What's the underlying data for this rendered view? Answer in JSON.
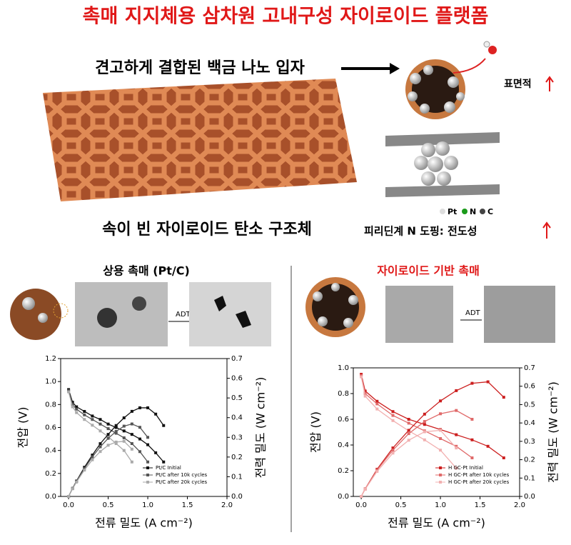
{
  "header": {
    "title": "촉매 지지체용 삼차원 고내구성 자이로이드 플랫폼"
  },
  "illustration": {
    "particles_label": "견고하게 결합된 백금 나노 입자",
    "surface_label": "표면적",
    "structure_label": "속이 빈 자이로이드 탄소 구조체",
    "doping_label": "피리딘계 N 도핑: 전도성",
    "atoms": [
      "Pt",
      "N",
      "C"
    ]
  },
  "panels": [
    {
      "adt": "ADT"
    },
    {
      "adt": "ADT"
    }
  ],
  "chart_data": [
    {
      "type": "line",
      "title": "상용 촉매 (Pt/C)",
      "x_label": "전류 밀도 (A cm⁻²)",
      "y_label": "전압 (V)",
      "y2_label": "전력 밀도 (W cm⁻²)",
      "xlim": [
        -0.1,
        2.0
      ],
      "xticks": [
        {
          "value": 0,
          "label": "0.0"
        },
        {
          "value": 0.5,
          "label": "0.5"
        },
        {
          "value": 1,
          "label": "1.0"
        },
        {
          "value": 1.5,
          "label": "1.5"
        },
        {
          "value": 2,
          "label": "2.0"
        }
      ],
      "ylim": [
        0,
        1.2
      ],
      "yticks": [
        {
          "value": 0,
          "label": "0.0"
        },
        0.2,
        0.4,
        0.6,
        0.8,
        {
          "value": 1,
          "label": "1.0"
        },
        1.2
      ],
      "y2lim": [
        0,
        0.7
      ],
      "y2ticks": [
        {
          "value": 0,
          "label": "0.0"
        },
        0.1,
        0.2,
        0.3,
        0.4,
        0.5,
        0.6,
        0.7
      ],
      "legend": "lower right",
      "series": [
        {
          "name": "Pt/C Initial",
          "color": "#111111",
          "x": [
            0,
            0.05,
            0.1,
            0.2,
            0.3,
            0.4,
            0.5,
            0.6,
            0.7,
            0.8,
            0.9,
            1.0,
            1.1,
            1.2
          ],
          "values": [
            0.93,
            0.82,
            0.78,
            0.74,
            0.7,
            0.67,
            0.63,
            0.6,
            0.57,
            0.54,
            0.5,
            0.45,
            0.38,
            0.3
          ]
        },
        {
          "name": "Pt/C after 10k cycles",
          "color": "#555555",
          "x": [
            0,
            0.05,
            0.1,
            0.2,
            0.3,
            0.4,
            0.5,
            0.6,
            0.7,
            0.8,
            0.9,
            1.0
          ],
          "values": [
            0.92,
            0.8,
            0.76,
            0.71,
            0.67,
            0.63,
            0.59,
            0.55,
            0.51,
            0.46,
            0.39,
            0.3
          ]
        },
        {
          "name": "Pt/C after 20k cycles",
          "color": "#aaaaaa",
          "x": [
            0,
            0.05,
            0.1,
            0.2,
            0.3,
            0.4,
            0.5,
            0.6,
            0.7,
            0.8
          ],
          "values": [
            0.91,
            0.78,
            0.73,
            0.67,
            0.62,
            0.57,
            0.52,
            0.46,
            0.4,
            0.3
          ]
        },
        {
          "color": "#111111",
          "axis": "y2",
          "x": [
            0,
            0.05,
            0.1,
            0.2,
            0.3,
            0.4,
            0.5,
            0.6,
            0.7,
            0.8,
            0.9,
            1.0,
            1.1,
            1.2
          ],
          "values": [
            0,
            0.041,
            0.078,
            0.148,
            0.21,
            0.268,
            0.315,
            0.36,
            0.399,
            0.432,
            0.45,
            0.45,
            0.418,
            0.36
          ]
        },
        {
          "color": "#555555",
          "axis": "y2",
          "x": [
            0,
            0.05,
            0.1,
            0.2,
            0.3,
            0.4,
            0.5,
            0.6,
            0.7,
            0.8,
            0.9,
            1.0
          ],
          "values": [
            0,
            0.04,
            0.076,
            0.142,
            0.201,
            0.252,
            0.295,
            0.33,
            0.357,
            0.368,
            0.351,
            0.3
          ]
        },
        {
          "color": "#aaaaaa",
          "axis": "y2",
          "x": [
            0,
            0.05,
            0.1,
            0.2,
            0.3,
            0.4,
            0.5,
            0.6,
            0.7,
            0.8
          ],
          "values": [
            0,
            0.039,
            0.073,
            0.134,
            0.186,
            0.228,
            0.26,
            0.276,
            0.28,
            0.24
          ]
        }
      ]
    },
    {
      "type": "line",
      "title": "자이로이드 기반 촉매",
      "x_label": "전류 밀도 (A cm⁻²)",
      "y_label": "전압 (V)",
      "y2_label": "전력 밀도 (W cm⁻²)",
      "xlim": [
        -0.1,
        2.0
      ],
      "xticks": [
        {
          "value": 0,
          "label": "0.0"
        },
        {
          "value": 0.5,
          "label": "0.5"
        },
        {
          "value": 1,
          "label": "1.0"
        },
        {
          "value": 1.5,
          "label": "1.5"
        },
        {
          "value": 2,
          "label": "2.0"
        }
      ],
      "ylim": [
        0,
        1.0
      ],
      "yticks": [
        {
          "value": 0,
          "label": "0.0"
        },
        0.2,
        0.4,
        0.6,
        0.8,
        {
          "value": 1,
          "label": "1.0"
        }
      ],
      "y2lim": [
        0,
        0.7
      ],
      "y2ticks": [
        {
          "value": 0,
          "label": "0.0"
        },
        0.1,
        0.2,
        0.3,
        0.4,
        0.5,
        0.6,
        0.7
      ],
      "legend": "lower right",
      "series": [
        {
          "name": "H GC-Pt Initial",
          "color": "#cc1f1f",
          "x": [
            0,
            0.05,
            0.2,
            0.4,
            0.6,
            0.8,
            1.0,
            1.2,
            1.4,
            1.6,
            1.8
          ],
          "values": [
            0.95,
            0.82,
            0.74,
            0.66,
            0.6,
            0.56,
            0.52,
            0.48,
            0.44,
            0.39,
            0.3
          ]
        },
        {
          "name": "H GC-Pt after 10k cycles",
          "color": "#e06a6a",
          "x": [
            0,
            0.05,
            0.2,
            0.4,
            0.6,
            0.8,
            1.0,
            1.2,
            1.4
          ],
          "values": [
            0.94,
            0.8,
            0.72,
            0.63,
            0.57,
            0.51,
            0.45,
            0.39,
            0.3
          ]
        },
        {
          "name": "H GC-Pt after 20k cycles",
          "color": "#f2b0b0",
          "x": [
            0,
            0.05,
            0.2,
            0.4,
            0.6,
            0.8,
            1.0,
            1.2
          ],
          "values": [
            0.93,
            0.78,
            0.68,
            0.59,
            0.51,
            0.44,
            0.36,
            0.22
          ]
        },
        {
          "color": "#cc1f1f",
          "axis": "y2",
          "x": [
            0,
            0.05,
            0.2,
            0.4,
            0.6,
            0.8,
            1.0,
            1.2,
            1.4,
            1.6,
            1.8
          ],
          "values": [
            0,
            0.041,
            0.148,
            0.264,
            0.36,
            0.448,
            0.52,
            0.576,
            0.616,
            0.624,
            0.54
          ]
        },
        {
          "color": "#e06a6a",
          "axis": "y2",
          "x": [
            0,
            0.05,
            0.2,
            0.4,
            0.6,
            0.8,
            1.0,
            1.2,
            1.4
          ],
          "values": [
            0,
            0.04,
            0.144,
            0.252,
            0.342,
            0.408,
            0.45,
            0.468,
            0.42
          ]
        },
        {
          "color": "#f2b0b0",
          "axis": "y2",
          "x": [
            0,
            0.05,
            0.2,
            0.4,
            0.6,
            0.8,
            1.0,
            1.2
          ],
          "values": [
            0,
            0.039,
            0.136,
            0.236,
            0.306,
            0.352,
            0.36,
            0.264
          ]
        }
      ]
    }
  ]
}
